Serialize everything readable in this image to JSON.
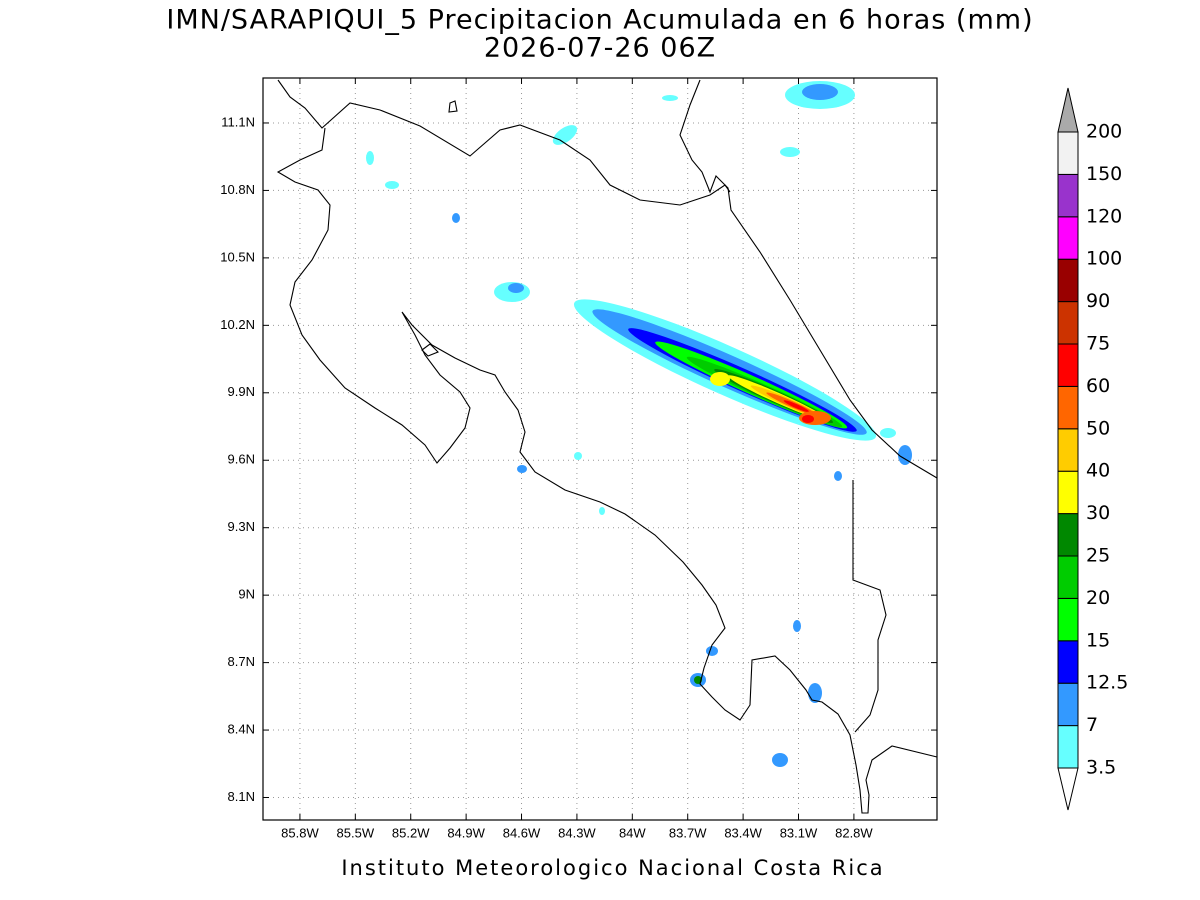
{
  "header": {
    "title": "IMN/SARAPIQUI_5 Precipitacion Acumulada en 6 horas (mm)",
    "subtitle": "2026-07-26 06Z"
  },
  "map": {
    "lonlim": [
      -86.0,
      -82.35
    ],
    "latlim": [
      8.0,
      11.3
    ],
    "lon_ticks": [
      {
        "value": -85.8,
        "label": "85.8W"
      },
      {
        "value": -85.5,
        "label": "85.5W"
      },
      {
        "value": -85.2,
        "label": "85.2W"
      },
      {
        "value": -84.9,
        "label": "84.9W"
      },
      {
        "value": -84.6,
        "label": "84.6W"
      },
      {
        "value": -84.3,
        "label": "84.3W"
      },
      {
        "value": -84.0,
        "label": "84W"
      },
      {
        "value": -83.7,
        "label": "83.7W"
      },
      {
        "value": -83.4,
        "label": "83.4W"
      },
      {
        "value": -83.1,
        "label": "83.1W"
      },
      {
        "value": -82.8,
        "label": "82.8W"
      }
    ],
    "lat_ticks": [
      {
        "value": 8.1,
        "label": "8.1N"
      },
      {
        "value": 8.4,
        "label": "8.4N"
      },
      {
        "value": 8.7,
        "label": "8.7N"
      },
      {
        "value": 9.0,
        "label": "9N"
      },
      {
        "value": 9.3,
        "label": "9.3N"
      },
      {
        "value": 9.6,
        "label": "9.6N"
      },
      {
        "value": 9.9,
        "label": "9.9N"
      },
      {
        "value": 10.2,
        "label": "10.2N"
      },
      {
        "value": 10.5,
        "label": "10.5N"
      },
      {
        "value": 10.8,
        "label": "10.8N"
      },
      {
        "value": 11.1,
        "label": "11.1N"
      }
    ],
    "grid": true
  },
  "colorbar": {
    "levels": [
      3.5,
      7,
      12.5,
      15,
      20,
      25,
      30,
      40,
      50,
      60,
      75,
      90,
      100,
      120,
      150,
      200
    ],
    "colors": [
      "#66ffff",
      "#3399ff",
      "#0000ff",
      "#00ff00",
      "#00cc00",
      "#008800",
      "#ffff00",
      "#ffcc00",
      "#ff6600",
      "#ff0000",
      "#cc3300",
      "#990000",
      "#ff00ff",
      "#9933cc",
      "#f2f2f2"
    ],
    "under_color": "#ffffff",
    "over_color": "#aaaaaa"
  },
  "footer": "Instituto Meteorologico Nacional Costa Rica"
}
